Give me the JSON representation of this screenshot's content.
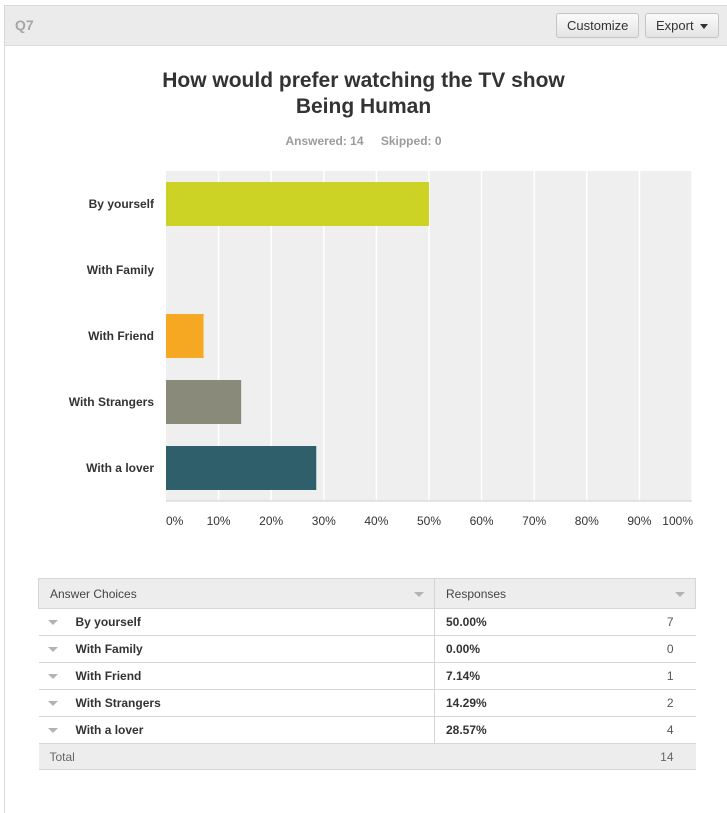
{
  "header": {
    "question_label": "Q7",
    "customize_label": "Customize",
    "export_label": "Export"
  },
  "title_line1": "How would prefer watching the TV show",
  "title_line2": "Being Human",
  "meta": {
    "answered": "Answered: 14",
    "skipped": "Skipped: 0"
  },
  "chart_data": {
    "type": "bar",
    "orientation": "horizontal",
    "categories": [
      "By yourself",
      "With Family",
      "With Friend",
      "With Strangers",
      "With a lover"
    ],
    "values": [
      50.0,
      0.0,
      7.14,
      14.29,
      28.57
    ],
    "colors": [
      "#cdd325",
      "#cdd325",
      "#f7a823",
      "#8a8a7a",
      "#2f5f6b"
    ],
    "xlim": [
      0,
      100
    ],
    "xticks": [
      "0%",
      "10%",
      "20%",
      "30%",
      "40%",
      "50%",
      "60%",
      "70%",
      "80%",
      "90%",
      "100%"
    ],
    "grid": true,
    "plot_background": "#efefef"
  },
  "table": {
    "headers": [
      "Answer Choices",
      "Responses"
    ],
    "rows": [
      {
        "choice": "By yourself",
        "percent": "50.00%",
        "count": "7"
      },
      {
        "choice": "With Family",
        "percent": "0.00%",
        "count": "0"
      },
      {
        "choice": "With Friend",
        "percent": "7.14%",
        "count": "1"
      },
      {
        "choice": "With Strangers",
        "percent": "14.29%",
        "count": "2"
      },
      {
        "choice": "With a lover",
        "percent": "28.57%",
        "count": "4"
      }
    ],
    "total_label": "Total",
    "total_count": "14"
  }
}
